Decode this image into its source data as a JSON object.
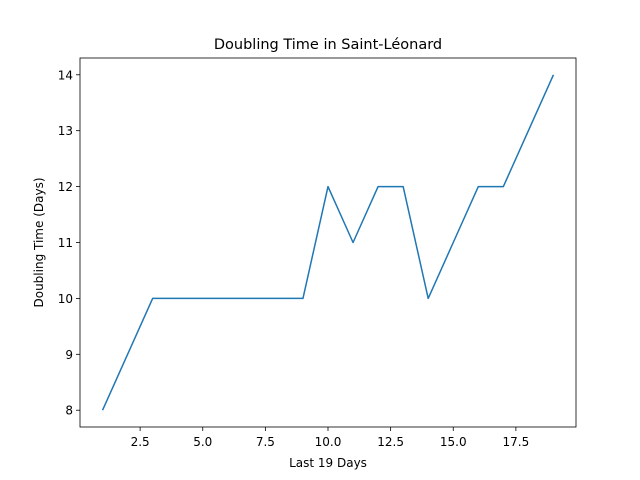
{
  "chart_data": {
    "type": "line",
    "title": "Doubling Time in  Saint-Léonard",
    "xlabel": "Last 19 Days",
    "ylabel": "Doubling Time (Days)",
    "xlim": [
      0.1,
      19.9
    ],
    "ylim": [
      7.7,
      14.3
    ],
    "xticks": [
      2.5,
      5.0,
      7.5,
      10.0,
      12.5,
      15.0,
      17.5
    ],
    "xtick_labels": [
      "2.5",
      "5.0",
      "7.5",
      "10.0",
      "12.5",
      "15.0",
      "17.5"
    ],
    "yticks": [
      8,
      9,
      10,
      11,
      12,
      13,
      14
    ],
    "ytick_labels": [
      "8",
      "9",
      "10",
      "11",
      "12",
      "13",
      "14"
    ],
    "grid": false,
    "series": [
      {
        "color": "#1f77b4",
        "x": [
          1,
          2,
          3,
          4,
          5,
          6,
          7,
          8,
          9,
          10,
          11,
          12,
          13,
          14,
          15,
          16,
          17,
          18,
          19
        ],
        "y": [
          8,
          9,
          10,
          10,
          10,
          10,
          10,
          10,
          10,
          12,
          11,
          12,
          12,
          10,
          11,
          12,
          12,
          13,
          14
        ]
      }
    ]
  }
}
